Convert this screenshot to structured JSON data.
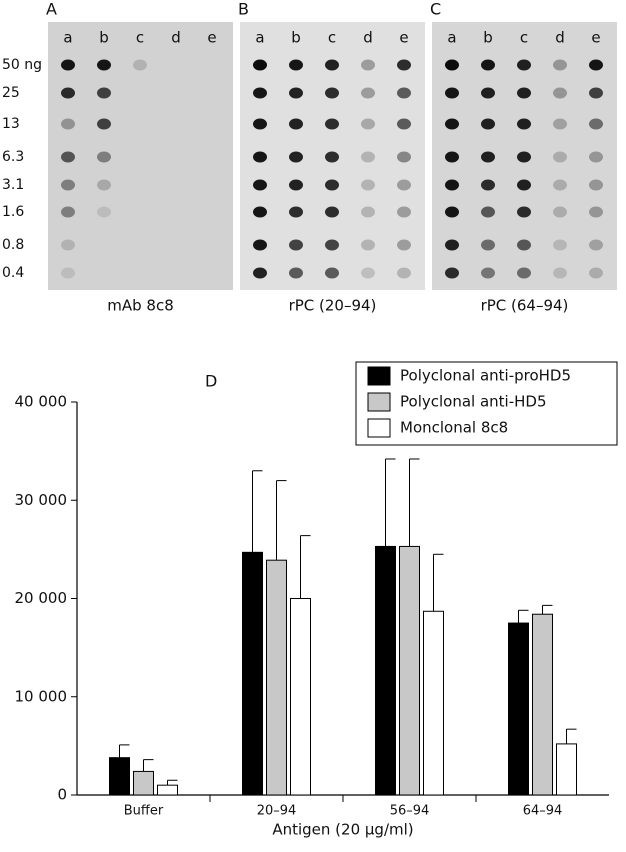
{
  "panels": [
    {
      "label": "A",
      "caption": "mAb 8c8"
    },
    {
      "label": "B",
      "caption": "rPC (20–94)"
    },
    {
      "label": "C",
      "caption": "rPC (64–94)"
    }
  ],
  "blot_columns": [
    "a",
    "b",
    "c",
    "d",
    "e"
  ],
  "blot_rows": [
    "50 ng",
    "25",
    "13",
    "6.3",
    "3.1",
    "1.6",
    "0.8",
    "0.4"
  ],
  "chart_data": {
    "type": "bar",
    "panel_label": "D",
    "x_label": "Antigen (20 μg/ml)",
    "categories": [
      "Buffer",
      "20–94",
      "56–94",
      "64–94"
    ],
    "series": [
      {
        "name": "Polyclonal anti-proHD5",
        "color": "#000000",
        "values": [
          3800,
          24700,
          25300,
          17500
        ],
        "errors": [
          1300,
          8300,
          8900,
          1300
        ]
      },
      {
        "name": "Polyclonal anti-HD5",
        "color": "#c8c8c8",
        "values": [
          2400,
          23900,
          25300,
          18400
        ],
        "errors": [
          1200,
          8100,
          8900,
          900
        ]
      },
      {
        "name": "Monclonal 8c8",
        "color": "#ffffff",
        "values": [
          1000,
          20000,
          18700,
          5200
        ],
        "errors": [
          500,
          6400,
          5800,
          1500
        ]
      }
    ],
    "ylim": [
      0,
      40000
    ],
    "yticks": [
      0,
      {
        "value": 10000,
        "label": "10 000"
      },
      {
        "value": 20000,
        "label": "20 000"
      },
      {
        "value": 30000,
        "label": "30 000"
      },
      {
        "value": 40000,
        "label": "40 000"
      }
    ],
    "legend": "top-right"
  }
}
